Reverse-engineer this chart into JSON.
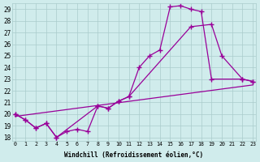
{
  "xlabel": "Windchill (Refroidissement éolien,°C)",
  "bg_color": "#d0ecec",
  "grid_color": "#aacccc",
  "line_color": "#990099",
  "xmin": 0,
  "xmax": 23,
  "ymin": 18,
  "ymax": 29,
  "s1x": [
    0,
    1,
    2,
    3,
    4,
    5,
    6,
    7,
    8,
    9,
    10,
    11,
    12,
    13,
    14,
    15,
    16,
    17,
    18,
    19,
    22,
    23
  ],
  "s1y": [
    20,
    19.5,
    18.8,
    19.2,
    18.0,
    18.5,
    18.7,
    18.5,
    20.7,
    20.5,
    21.1,
    21.5,
    24.0,
    25.0,
    25.5,
    29.2,
    29.3,
    29.0,
    28.8,
    23.0,
    23.0,
    22.8
  ],
  "s2x": [
    0,
    1,
    2,
    3,
    4,
    8,
    9,
    10,
    11,
    17,
    19,
    20,
    22,
    23
  ],
  "s2y": [
    20,
    19.5,
    18.8,
    19.2,
    18.0,
    20.7,
    20.5,
    21.1,
    21.5,
    27.5,
    27.7,
    25.0,
    23.0,
    22.8
  ],
  "s3x": [
    0,
    23
  ],
  "s3y": [
    19.8,
    22.5
  ]
}
